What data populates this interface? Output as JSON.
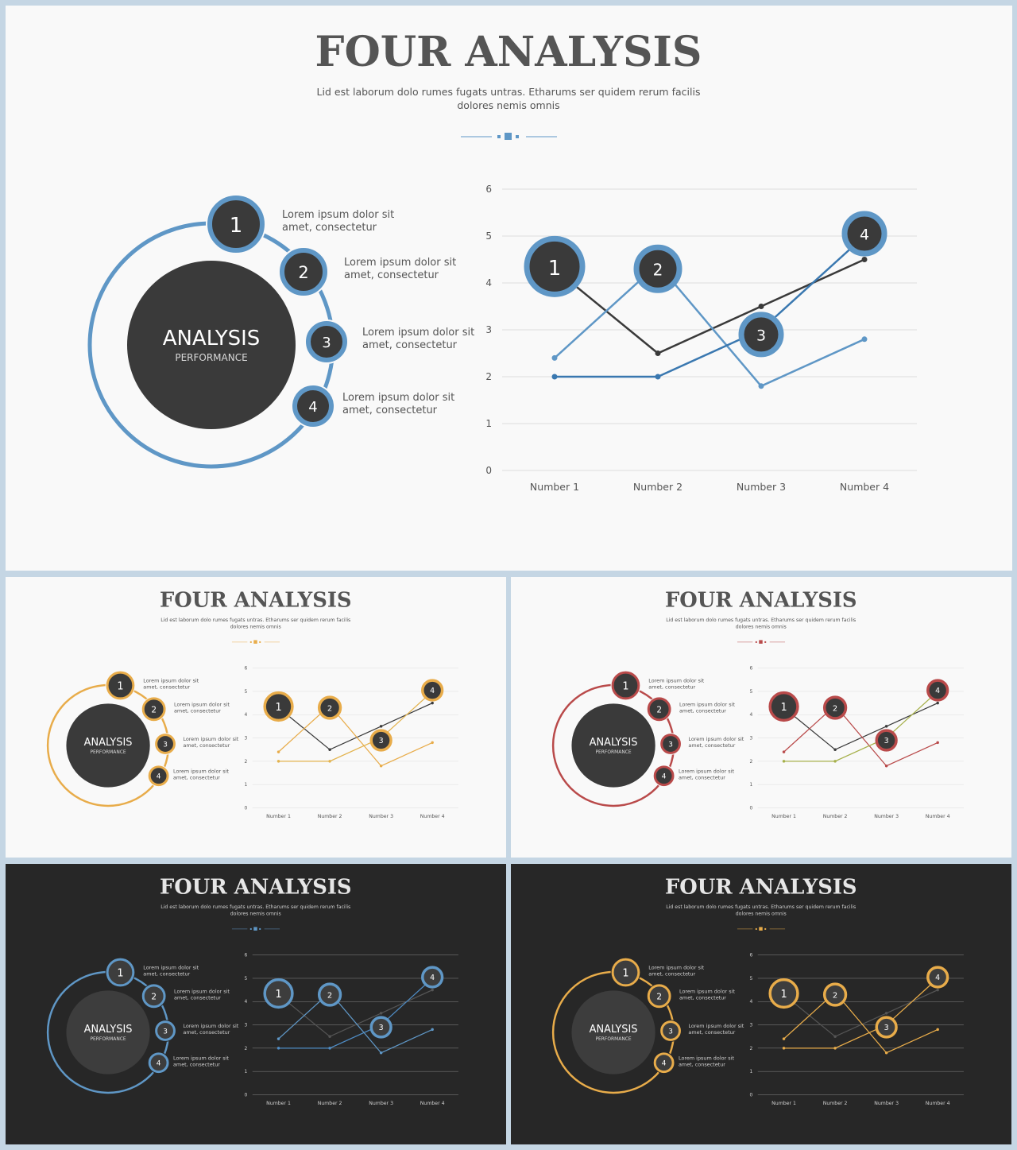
{
  "title": "FOUR ANALYSIS",
  "subtitle_line1": "Lid est laborum dolo rumes fugats untras. Etharums ser quidem rerum facilis",
  "subtitle_line2": "dolores nemis omnis",
  "hub": {
    "title": "ANALYSIS",
    "subtitle": "PERFORMANCE"
  },
  "items": [
    {
      "number": "1",
      "line1": "Lorem ipsum dolor sit",
      "line2": "amet, consectetur"
    },
    {
      "number": "2",
      "line1": "Lorem ipsum dolor sit",
      "line2": "amet, consectetur"
    },
    {
      "number": "3",
      "line1": "Lorem ipsum dolor sit",
      "line2": "amet, consectetur"
    },
    {
      "number": "4",
      "line1": "Lorem ipsum dolor sit",
      "line2": "amet, consectetur"
    }
  ],
  "themes": [
    {
      "name": "light-blue",
      "background": "#f9f9f9",
      "accent": "#5f97c6",
      "accent_dark": "#3a78b0",
      "hub": "#3a3a3a",
      "title_color": "#555555",
      "text_color": "#555555",
      "grid_color": "#dddddd",
      "series1_color": "#3a3a3a"
    },
    {
      "name": "light-orange",
      "background": "#f9f9f9",
      "accent": "#e8ac4a",
      "accent_dark": "#e3b34e",
      "hub": "#3a3a3a",
      "title_color": "#555555",
      "text_color": "#555555",
      "grid_color": "#dddddd",
      "series1_color": "#3a3a3a"
    },
    {
      "name": "light-red",
      "background": "#f9f9f9",
      "accent": "#b94a4a",
      "accent_dark": "#a6b04a",
      "hub": "#3a3a3a",
      "title_color": "#555555",
      "text_color": "#555555",
      "grid_color": "#dddddd",
      "series1_color": "#3a3a3a"
    },
    {
      "name": "dark-blue",
      "background": "#272727",
      "accent": "#5f97c6",
      "accent_dark": "#4f8cc4",
      "hub": "#3d3d3d",
      "title_color": "#e6e6e6",
      "text_color": "#cfcfcf",
      "grid_color": "#8a8a8a",
      "series1_color": "#555555"
    },
    {
      "name": "dark-orange",
      "background": "#272727",
      "accent": "#e8ac4a",
      "accent_dark": "#e8ac4a",
      "hub": "#3d3d3d",
      "title_color": "#e6e6e6",
      "text_color": "#cfcfcf",
      "grid_color": "#8a8a8a",
      "series1_color": "#555555"
    }
  ],
  "chart_data": {
    "type": "line",
    "categories": [
      "Number 1",
      "Number 2",
      "Number 3",
      "Number 4"
    ],
    "ylim": [
      0,
      6
    ],
    "yticks": [
      "0",
      "1",
      "2",
      "3",
      "4",
      "5",
      "6"
    ],
    "grid": true,
    "series": [
      {
        "values": [
          4.3,
          2.5,
          3.5,
          4.5
        ]
      },
      {
        "values": [
          2.4,
          4.4,
          1.8,
          2.8
        ]
      },
      {
        "values": [
          2.0,
          2.0,
          3.0,
          5.0
        ]
      }
    ],
    "markers": [
      {
        "label": "1",
        "category": "Number 1",
        "value": 4.35
      },
      {
        "label": "2",
        "category": "Number 2",
        "value": 4.3
      },
      {
        "label": "3",
        "category": "Number 3",
        "value": 2.9
      },
      {
        "label": "4",
        "category": "Number 4",
        "value": 5.05
      }
    ]
  }
}
